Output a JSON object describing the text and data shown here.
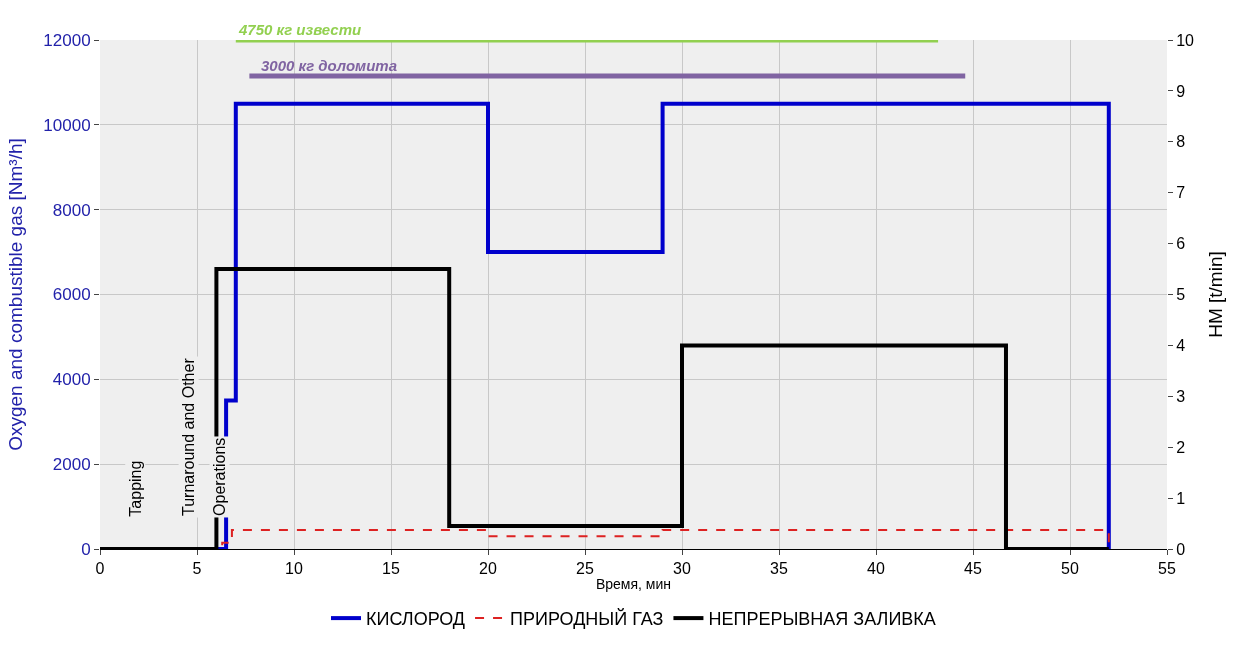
{
  "chart_data": {
    "type": "step",
    "xlabel": "Время, мин",
    "ylabel": "Oxygen and combustible gas [Nm³/h]",
    "y2label": "HM [t/min]",
    "xlim": [
      0,
      55
    ],
    "xticks": [
      0,
      5,
      10,
      15,
      20,
      25,
      30,
      35,
      40,
      45,
      50,
      55
    ],
    "ylim": [
      0,
      12000
    ],
    "yticks": [
      0,
      2000,
      4000,
      6000,
      8000,
      10000,
      12000
    ],
    "y2lim": [
      0,
      10
    ],
    "y2ticks": [
      0,
      1,
      2,
      3,
      4,
      5,
      6,
      7,
      8,
      9,
      10
    ],
    "grid": true,
    "legend": "bottom",
    "marker": "none",
    "series": [
      {
        "name": "КИСЛОРОД",
        "color": "#0000cc",
        "x": [
          0,
          6.5,
          7,
          20,
          29,
          52
        ],
        "values": [
          0,
          3500,
          10500,
          7000,
          10500,
          0
        ],
        "line_style": "solid"
      },
      {
        "name": "ПРИРОДНЫЙ ГАЗ",
        "color": "#dd2222",
        "x": [
          0,
          6.3,
          6.8,
          20,
          29,
          52
        ],
        "values": [
          0,
          150,
          450,
          300,
          450,
          0
        ],
        "line_style": "dashed"
      },
      {
        "name": "НЕПРЕРЫВНАЯ ЗАЛИВКА",
        "color": "#000000",
        "x": [
          0,
          6,
          18,
          30,
          46.7,
          52
        ],
        "values": [
          0,
          5.5,
          0.45,
          4,
          0,
          0
        ],
        "axis": "y2",
        "line_style": "solid"
      },
      {
        "type": "line",
        "color": "#92d050",
        "x": [
          7,
          43.2
        ],
        "values": [
          12000,
          12000
        ],
        "line_style": "solid"
      },
      {
        "type": "line",
        "color": "#8064a2",
        "x": [
          7.7,
          44.6
        ],
        "values": [
          11150,
          11150
        ],
        "line_style": "solid"
      }
    ],
    "annotations": [
      {
        "text": "4750 кг извести",
        "x": 7,
        "y": 12000
      },
      {
        "text": "3000 кг доломита",
        "x": 7.7,
        "y": 11150
      },
      "Tapping",
      "Turnaround and Other",
      "Operations"
    ]
  }
}
